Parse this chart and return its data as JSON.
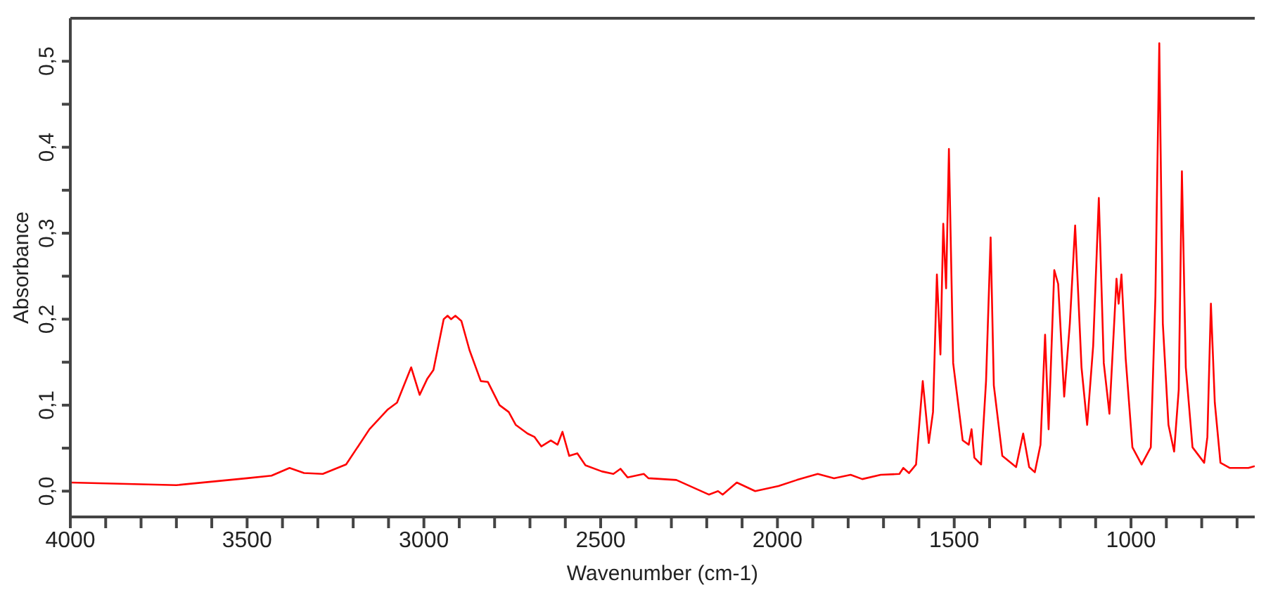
{
  "chart_data": {
    "type": "line",
    "xlabel": "Wavenumber (cm-1)",
    "ylabel": "Absorbance",
    "xlim": [
      4000,
      650
    ],
    "xticks": [
      4000,
      {
        "value": 3900,
        "label": null
      },
      {
        "value": 3800,
        "label": null
      },
      {
        "value": 3700,
        "label": null
      },
      {
        "value": 3600,
        "label": null
      },
      3500,
      {
        "value": 3400,
        "label": null
      },
      {
        "value": 3300,
        "label": null
      },
      {
        "value": 3200,
        "label": null
      },
      {
        "value": 3100,
        "label": null
      },
      3000,
      {
        "value": 2900,
        "label": null
      },
      {
        "value": 2800,
        "label": null
      },
      {
        "value": 2700,
        "label": null
      },
      {
        "value": 2600,
        "label": null
      },
      2500,
      {
        "value": 2400,
        "label": null
      },
      {
        "value": 2300,
        "label": null
      },
      {
        "value": 2200,
        "label": null
      },
      {
        "value": 2100,
        "label": null
      },
      2000,
      {
        "value": 1900,
        "label": null
      },
      {
        "value": 1800,
        "label": null
      },
      {
        "value": 1700,
        "label": null
      },
      {
        "value": 1600,
        "label": null
      },
      1500,
      {
        "value": 1400,
        "label": null
      },
      {
        "value": 1300,
        "label": null
      },
      {
        "value": 1200,
        "label": null
      },
      {
        "value": 1100,
        "label": null
      },
      1000,
      {
        "value": 900,
        "label": null
      },
      {
        "value": 800,
        "label": null
      },
      {
        "value": 700,
        "label": null
      }
    ],
    "ylim": [
      -0.03,
      0.55
    ],
    "yticks": [
      {
        "value": 0,
        "label": "0,0"
      },
      {
        "value": 0.05,
        "label": null
      },
      {
        "value": 0.1,
        "label": "0,1"
      },
      {
        "value": 0.15,
        "label": null
      },
      {
        "value": 0.2,
        "label": "0,2"
      },
      {
        "value": 0.25,
        "label": null
      },
      {
        "value": 0.3,
        "label": "0,3"
      },
      {
        "value": 0.35,
        "label": null
      },
      {
        "value": 0.4,
        "label": "0,4"
      },
      {
        "value": 0.45,
        "label": null
      },
      {
        "value": 0.5,
        "label": "0,5"
      }
    ],
    "grid": false,
    "marker": "none",
    "line_style": "solid",
    "series": [
      {
        "color": "#ff0000",
        "x": [
          4000,
          3700,
          3500,
          3431,
          3380,
          3339,
          3286,
          3220,
          3154,
          3102,
          3076,
          3036,
          3012,
          2990,
          2973,
          2944,
          2933,
          2923,
          2911,
          2894,
          2871,
          2839,
          2819,
          2786,
          2760,
          2740,
          2707,
          2687,
          2668,
          2641,
          2622,
          2608,
          2589,
          2566,
          2543,
          2497,
          2464,
          2444,
          2424,
          2378,
          2365,
          2286,
          2194,
          2168,
          2155,
          2115,
          2063,
          1997,
          1945,
          1886,
          1840,
          1793,
          1760,
          1708,
          1655,
          1644,
          1628,
          1608,
          1589,
          1572,
          1560,
          1549,
          1539,
          1531,
          1523,
          1515,
          1503,
          1476,
          1459,
          1451,
          1443,
          1424,
          1410,
          1397,
          1388,
          1364,
          1325,
          1305,
          1288,
          1272,
          1256,
          1243,
          1233,
          1217,
          1206,
          1189,
          1173,
          1158,
          1140,
          1124,
          1107,
          1091,
          1077,
          1061,
          1041,
          1035,
          1027,
          1015,
          996,
          970,
          944,
          931,
          920,
          910,
          894,
          878,
          865,
          856,
          845,
          826,
          793,
          784,
          774,
          763,
          747,
          721,
          668,
          650
        ],
        "values": [
          0.01,
          0.007,
          0.015,
          0.018,
          0.027,
          0.021,
          0.02,
          0.031,
          0.072,
          0.095,
          0.103,
          0.144,
          0.112,
          0.131,
          0.141,
          0.2,
          0.204,
          0.2,
          0.204,
          0.198,
          0.164,
          0.128,
          0.127,
          0.1,
          0.092,
          0.077,
          0.067,
          0.063,
          0.052,
          0.059,
          0.054,
          0.069,
          0.041,
          0.044,
          0.03,
          0.023,
          0.02,
          0.026,
          0.016,
          0.02,
          0.015,
          0.013,
          -0.004,
          0,
          -0.004,
          0.01,
          0,
          0.006,
          0.013,
          0.02,
          0.015,
          0.019,
          0.014,
          0.019,
          0.02,
          0.027,
          0.021,
          0.031,
          0.128,
          0.056,
          0.092,
          0.252,
          0.159,
          0.311,
          0.236,
          0.398,
          0.149,
          0.059,
          0.054,
          0.072,
          0.039,
          0.031,
          0.128,
          0.295,
          0.123,
          0.041,
          0.028,
          0.067,
          0.028,
          0.022,
          0.054,
          0.182,
          0.072,
          0.257,
          0.241,
          0.11,
          0.195,
          0.309,
          0.144,
          0.077,
          0.169,
          0.341,
          0.149,
          0.09,
          0.247,
          0.218,
          0.252,
          0.154,
          0.051,
          0.031,
          0.051,
          0.226,
          0.521,
          0.195,
          0.077,
          0.046,
          0.118,
          0.372,
          0.144,
          0.051,
          0.033,
          0.063,
          0.218,
          0.103,
          0.033,
          0.027,
          0.027,
          0.029
        ]
      }
    ]
  }
}
